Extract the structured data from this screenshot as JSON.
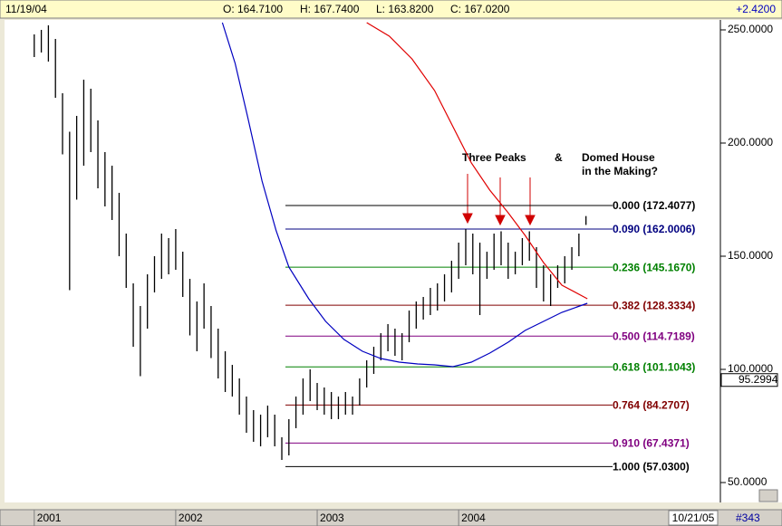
{
  "header": {
    "date": "11/19/04",
    "open": "O: 164.7100",
    "high": "H: 167.7400",
    "low": "L: 163.8200",
    "close": "C: 167.0200",
    "change": "+2.4200"
  },
  "footer": {
    "date": "10/21/05",
    "id": "#343"
  },
  "chart_data": {
    "type": "ohlc",
    "xlim": [
      2000.79,
      2005.85
    ],
    "xticks": [
      2001,
      2002,
      2003,
      2004
    ],
    "ylim": [
      41.2,
      254.4
    ],
    "yticks": [
      {
        "value": 250,
        "label": "250.0000"
      },
      {
        "value": 200,
        "label": "200.0000"
      },
      {
        "value": 150,
        "label": "150.0000"
      },
      {
        "value": 100,
        "label": "100.0000"
      },
      {
        "value": 50,
        "label": "50.0000"
      }
    ],
    "price_marker": {
      "value": 95.2994,
      "label": "95.2994"
    },
    "bars": {
      "color": "#000000",
      "x": [
        2001.0,
        2001.05,
        2001.1,
        2001.15,
        2001.2,
        2001.25,
        2001.3,
        2001.35,
        2001.4,
        2001.45,
        2001.5,
        2001.55,
        2001.6,
        2001.65,
        2001.7,
        2001.75,
        2001.8,
        2001.85,
        2001.9,
        2001.95,
        2002.0,
        2002.05,
        2002.1,
        2002.15,
        2002.2,
        2002.25,
        2002.3,
        2002.35,
        2002.4,
        2002.45,
        2002.5,
        2002.55,
        2002.6,
        2002.65,
        2002.7,
        2002.75,
        2002.8,
        2002.85,
        2002.9,
        2002.95,
        2003.0,
        2003.05,
        2003.1,
        2003.15,
        2003.2,
        2003.25,
        2003.3,
        2003.35,
        2003.4,
        2003.45,
        2003.5,
        2003.55,
        2003.6,
        2003.65,
        2003.7,
        2003.75,
        2003.8,
        2003.85,
        2003.9,
        2003.95,
        2004.0,
        2004.05,
        2004.1,
        2004.15,
        2004.2,
        2004.25,
        2004.3,
        2004.35,
        2004.4,
        2004.45,
        2004.5,
        2004.55,
        2004.6,
        2004.65,
        2004.7,
        2004.75,
        2004.8,
        2004.85,
        2004.9
      ],
      "high": [
        248,
        250,
        252,
        246,
        222,
        205,
        212,
        228,
        224,
        210,
        196,
        190,
        178,
        160,
        138,
        128,
        142,
        150,
        160,
        158,
        162,
        152,
        140,
        130,
        138,
        128,
        118,
        108,
        102,
        96,
        88,
        82,
        80,
        84,
        80,
        70,
        78,
        88,
        96,
        100,
        94,
        92,
        90,
        88,
        90,
        88,
        96,
        104,
        110,
        116,
        120,
        118,
        116,
        126,
        130,
        132,
        136,
        138,
        142,
        148,
        156,
        162,
        160,
        156,
        152,
        160,
        161,
        156,
        152,
        158,
        161,
        154,
        146,
        142,
        146,
        150,
        154,
        160,
        167.74
      ],
      "low": [
        238,
        240,
        236,
        220,
        195,
        135,
        175,
        190,
        196,
        180,
        172,
        166,
        150,
        136,
        110,
        97,
        118,
        134,
        140,
        142,
        144,
        132,
        115,
        108,
        118,
        105,
        96,
        90,
        88,
        80,
        72,
        68,
        66,
        70,
        66,
        60,
        62,
        74,
        80,
        86,
        82,
        80,
        78,
        78,
        80,
        80,
        84,
        92,
        98,
        104,
        108,
        106,
        104,
        112,
        118,
        122,
        124,
        126,
        130,
        134,
        140,
        146,
        142,
        124,
        140,
        144,
        146,
        140,
        142,
        146,
        148,
        136,
        130,
        128,
        136,
        138,
        144,
        150,
        163.82
      ]
    },
    "series": [
      {
        "color": "#0000c0",
        "x": [
          2002.33,
          2002.42,
          2002.51,
          2002.61,
          2002.71,
          2002.8,
          2002.94,
          2003.06,
          2003.19,
          2003.32,
          2003.45,
          2003.58,
          2003.71,
          2003.83,
          2003.96,
          2004.09,
          2004.22,
          2004.35,
          2004.47,
          2004.6,
          2004.73,
          2004.91
        ],
        "values": [
          253.2,
          235.2,
          211.2,
          183.2,
          161.2,
          145.2,
          131.2,
          121.2,
          113.2,
          108,
          104.8,
          103.2,
          102.4,
          102,
          101.2,
          103.2,
          107.2,
          112,
          117.2,
          121.2,
          125.2,
          129.2
        ]
      },
      {
        "color": "#e00000",
        "x": [
          2003.35,
          2003.51,
          2003.67,
          2003.83,
          2003.96,
          2004.09,
          2004.22,
          2004.35,
          2004.47,
          2004.6,
          2004.73,
          2004.91
        ],
        "values": [
          253.2,
          247.2,
          237.2,
          223.2,
          207.2,
          191.2,
          179.2,
          169.2,
          159.2,
          147.2,
          137.2,
          131.2
        ]
      }
    ],
    "fib_levels": [
      {
        "value": 172.4077,
        "label": "0.000 (172.4077)",
        "color": "#000000"
      },
      {
        "value": 162.0006,
        "label": "0.090 (162.0006)",
        "color": "#000080"
      },
      {
        "value": 145.167,
        "label": "0.236 (145.1670)",
        "color": "#008000"
      },
      {
        "value": 128.3334,
        "label": "0.382 (128.3334)",
        "color": "#800000"
      },
      {
        "value": 114.7189,
        "label": "0.500 (114.7189)",
        "color": "#800080"
      },
      {
        "value": 101.1043,
        "label": "0.618 (101.1043)",
        "color": "#008000"
      },
      {
        "value": 84.2707,
        "label": "0.764 (84.2707)",
        "color": "#800000"
      },
      {
        "value": 67.4371,
        "label": "0.910 (67.4371)",
        "color": "#800080"
      },
      {
        "value": 57.03,
        "label": "1.000 (57.0300)",
        "color": "#000000"
      }
    ],
    "annotations": [
      "Three Peaks",
      "&",
      "Domed House",
      "in the Making?"
    ]
  }
}
